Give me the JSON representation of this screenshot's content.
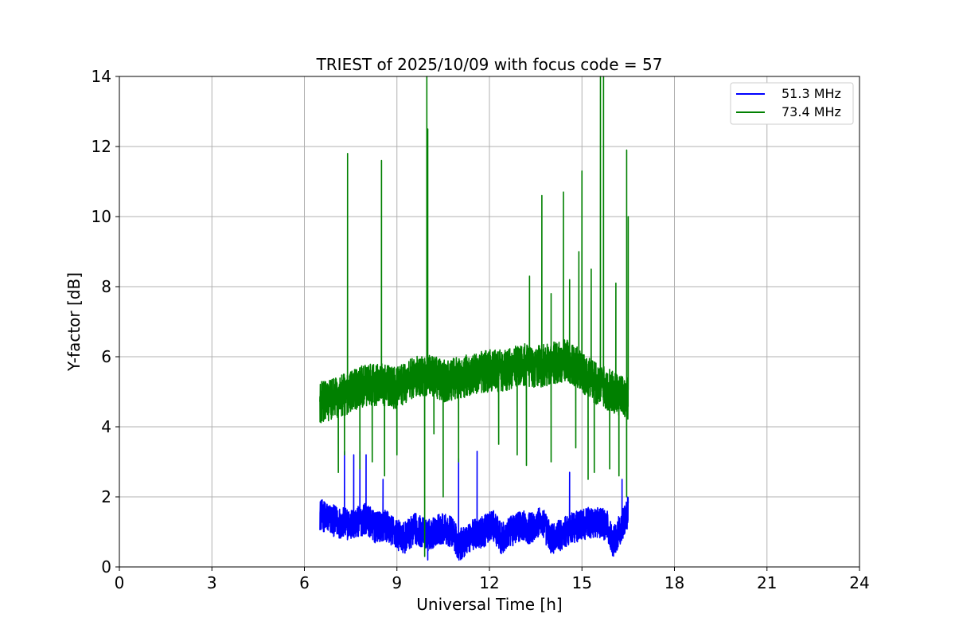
{
  "chart_data": {
    "type": "line",
    "title": "TRIEST of 2025/10/09 with focus code = 57",
    "xlabel": "Universal Time [h]",
    "ylabel": "Y-factor [dB]",
    "xlim": [
      0,
      24
    ],
    "ylim": [
      0,
      14
    ],
    "xticks": [
      0,
      3,
      6,
      9,
      12,
      15,
      18,
      21,
      24
    ],
    "yticks": [
      0,
      2,
      4,
      6,
      8,
      10,
      12,
      14
    ],
    "grid": true,
    "legend_position": "top-right",
    "series": [
      {
        "name": "51.3 MHz",
        "color": "#0000ff",
        "base": [
          [
            6.5,
            1.5
          ],
          [
            7.0,
            1.3
          ],
          [
            7.5,
            1.2
          ],
          [
            7.8,
            1.3
          ],
          [
            8.0,
            1.4
          ],
          [
            8.3,
            1.1
          ],
          [
            8.6,
            1.2
          ],
          [
            8.9,
            1.0
          ],
          [
            9.2,
            0.8
          ],
          [
            9.6,
            1.1
          ],
          [
            10.0,
            0.9
          ],
          [
            10.4,
            1.1
          ],
          [
            10.8,
            1.0
          ],
          [
            11.0,
            0.6
          ],
          [
            11.4,
            0.9
          ],
          [
            11.8,
            1.0
          ],
          [
            12.1,
            1.2
          ],
          [
            12.4,
            0.8
          ],
          [
            12.7,
            1.0
          ],
          [
            13.0,
            1.2
          ],
          [
            13.3,
            1.1
          ],
          [
            13.7,
            1.3
          ],
          [
            14.0,
            0.8
          ],
          [
            14.3,
            0.9
          ],
          [
            14.6,
            1.1
          ],
          [
            15.0,
            1.2
          ],
          [
            15.4,
            1.3
          ],
          [
            15.8,
            1.2
          ],
          [
            16.0,
            0.7
          ],
          [
            16.3,
            1.2
          ],
          [
            16.5,
            1.6
          ]
        ],
        "amplitude": 0.45,
        "spikes": [
          [
            7.3,
            3.3
          ],
          [
            7.6,
            3.2
          ],
          [
            7.8,
            3.3
          ],
          [
            8.0,
            3.2
          ],
          [
            8.55,
            2.5
          ],
          [
            10.0,
            0.2
          ],
          [
            11.0,
            3.1
          ],
          [
            11.6,
            3.3
          ],
          [
            14.6,
            2.7
          ],
          [
            16.3,
            2.5
          ]
        ]
      },
      {
        "name": "73.4 MHz",
        "color": "#008000",
        "base": [
          [
            6.5,
            4.7
          ],
          [
            7.0,
            4.8
          ],
          [
            7.5,
            5.0
          ],
          [
            8.0,
            5.2
          ],
          [
            8.5,
            5.2
          ],
          [
            9.0,
            5.1
          ],
          [
            9.5,
            5.4
          ],
          [
            10.0,
            5.5
          ],
          [
            10.5,
            5.3
          ],
          [
            11.0,
            5.4
          ],
          [
            11.5,
            5.5
          ],
          [
            12.0,
            5.6
          ],
          [
            12.5,
            5.6
          ],
          [
            13.0,
            5.8
          ],
          [
            13.5,
            5.7
          ],
          [
            14.0,
            5.8
          ],
          [
            14.5,
            5.9
          ],
          [
            15.0,
            5.6
          ],
          [
            15.5,
            5.2
          ],
          [
            16.0,
            5.0
          ],
          [
            16.5,
            4.8
          ]
        ],
        "amplitude": 0.6,
        "spikes": [
          [
            7.4,
            11.8
          ],
          [
            8.5,
            11.6
          ],
          [
            9.97,
            14.0
          ],
          [
            10.0,
            12.5
          ],
          [
            13.3,
            8.3
          ],
          [
            13.7,
            10.6
          ],
          [
            14.0,
            7.8
          ],
          [
            14.4,
            10.7
          ],
          [
            14.6,
            8.2
          ],
          [
            14.9,
            9.0
          ],
          [
            15.0,
            11.3
          ],
          [
            15.3,
            8.5
          ],
          [
            15.6,
            14.0
          ],
          [
            15.7,
            14.0
          ],
          [
            16.1,
            8.1
          ],
          [
            16.45,
            11.9
          ],
          [
            16.5,
            10.0
          ]
        ],
        "dips": [
          [
            7.1,
            2.7
          ],
          [
            7.3,
            3.2
          ],
          [
            7.8,
            2.8
          ],
          [
            8.2,
            3.0
          ],
          [
            8.6,
            2.6
          ],
          [
            9.0,
            3.2
          ],
          [
            9.9,
            0.3
          ],
          [
            10.2,
            3.8
          ],
          [
            10.5,
            2.0
          ],
          [
            11.0,
            3.0
          ],
          [
            12.3,
            3.5
          ],
          [
            12.9,
            3.2
          ],
          [
            13.2,
            2.9
          ],
          [
            14.0,
            3.0
          ],
          [
            14.8,
            3.4
          ],
          [
            15.2,
            2.5
          ],
          [
            15.4,
            2.7
          ],
          [
            15.9,
            2.8
          ],
          [
            16.2,
            2.6
          ],
          [
            16.45,
            2.0
          ]
        ]
      }
    ]
  }
}
